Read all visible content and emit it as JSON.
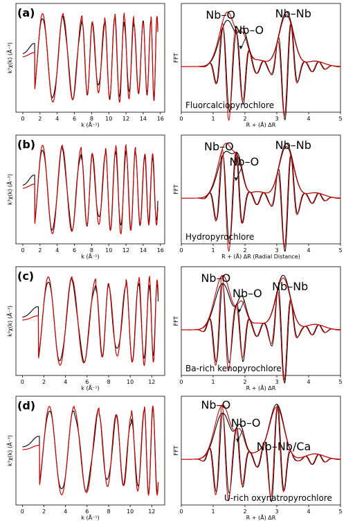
{
  "colors": {
    "experiment": "#000000",
    "fit": "#d40000"
  },
  "chart_data": [
    {
      "type": "line",
      "panel": "(a)",
      "side": "k-space",
      "xlabel": "k (Å⁻¹)",
      "ylabel": "k³χ(k) (Å⁻³)",
      "xlim": [
        -0.8,
        16.5
      ],
      "xticks": [
        0,
        2,
        4,
        6,
        8,
        10,
        12,
        14,
        16
      ],
      "curve": {
        "kmin": 0,
        "kmax": 15.7,
        "peaks": [
          2.3,
          4.7,
          6.9,
          8.1,
          9.5,
          10.7,
          11.8,
          12.9,
          14.0,
          14.9,
          15.6
        ],
        "amp": 1.0
      },
      "series": [
        {
          "role": "experiment"
        },
        {
          "role": "fit"
        }
      ]
    },
    {
      "type": "line",
      "panel": "(a)",
      "side": "R-space",
      "xlabel": "R + (Å) ΔR",
      "ylabel": "FFT",
      "xlim": [
        0,
        5
      ],
      "xticks": [
        0,
        1,
        2,
        3,
        4,
        5
      ],
      "annotations": [
        "Nb–O",
        "Nb–O",
        "Nb–Nb"
      ],
      "mineral": "Fluorcalciopyrochlore",
      "peaks_R": [
        1.45,
        1.95,
        3.3
      ],
      "series": [
        {
          "role": "experiment"
        },
        {
          "role": "fit"
        }
      ]
    },
    {
      "type": "line",
      "panel": "(b)",
      "side": "k-space",
      "xlabel": "k (Å⁻¹)",
      "ylabel": "k³χ(k) (Å⁻³)",
      "xlim": [
        -0.8,
        16.5
      ],
      "xticks": [
        0,
        2,
        4,
        6,
        8,
        10,
        12,
        14,
        16
      ],
      "curve": {
        "kmin": 0,
        "kmax": 15.7,
        "peaks": [
          2.3,
          4.6,
          6.8,
          8.1,
          9.6,
          10.8,
          12.0,
          13.1,
          14.2,
          15.1
        ],
        "amp": 1.0
      },
      "series": [
        {
          "role": "experiment"
        },
        {
          "role": "fit"
        }
      ]
    },
    {
      "type": "line",
      "panel": "(b)",
      "side": "R-space",
      "xlabel": "R + (Å) ΔR (Radial Distance)",
      "ylabel": "FFT",
      "xlim": [
        0,
        5
      ],
      "xticks": [
        0,
        1,
        2,
        3,
        4,
        5
      ],
      "annotations": [
        "Nb–O",
        "Nb–O",
        "Nb–Nb"
      ],
      "mineral": "Hydropyrochlore",
      "peaks_R": [
        1.4,
        1.8,
        3.3
      ],
      "series": [
        {
          "role": "experiment"
        },
        {
          "role": "fit"
        }
      ]
    },
    {
      "type": "line",
      "panel": "(c)",
      "side": "k-space",
      "xlabel": "k (Å⁻¹)",
      "ylabel": "k³χ(k) (Å⁻³)",
      "xlim": [
        -0.6,
        13.2
      ],
      "xticks": [
        0,
        2,
        4,
        6,
        8,
        10,
        12
      ],
      "curve": {
        "kmin": 0,
        "kmax": 12.6,
        "peaks": [
          2.4,
          4.6,
          6.8,
          8.0,
          9.6,
          10.8,
          11.8,
          12.5
        ],
        "amp": 1.0
      },
      "series": [
        {
          "role": "experiment"
        },
        {
          "role": "fit"
        }
      ]
    },
    {
      "type": "line",
      "panel": "(c)",
      "side": "R-space",
      "xlabel": "R + (Å) ΔR",
      "ylabel": "FFT",
      "xlim": [
        0,
        5
      ],
      "xticks": [
        0,
        1,
        2,
        3,
        4,
        5
      ],
      "annotations": [
        "Nb–O",
        "Nb–O",
        "Nb–Nb"
      ],
      "mineral": "Ba-rich kenopyrochlore",
      "peaks_R": [
        1.3,
        1.9,
        3.2
      ],
      "series": [
        {
          "role": "experiment"
        },
        {
          "role": "fit"
        }
      ]
    },
    {
      "type": "line",
      "panel": "(d)",
      "side": "k-space",
      "xlabel": "k (Å⁻¹)",
      "ylabel": "k³χ(k) (Å⁻³)",
      "xlim": [
        -0.6,
        13.2
      ],
      "xticks": [
        0,
        2,
        4,
        6,
        8,
        10,
        12
      ],
      "curve": {
        "kmin": 0,
        "kmax": 12.6,
        "peaks": [
          2.5,
          4.8,
          7.1,
          8.7,
          10.1,
          11.3,
          12.1
        ],
        "amp": 1.0
      },
      "series": [
        {
          "role": "experiment"
        },
        {
          "role": "fit"
        }
      ]
    },
    {
      "type": "line",
      "panel": "(d)",
      "side": "R-space",
      "xlabel": "R + (Å) ΔR",
      "ylabel": "FFT",
      "xlim": [
        0,
        5
      ],
      "xticks": [
        0,
        1,
        2,
        3,
        4,
        5
      ],
      "annotations": [
        "Nb–O",
        "Nb–O",
        "Nb–Nb/Ca"
      ],
      "mineral": "U-rich oxynatropyrochlore",
      "peaks_R": [
        1.3,
        1.85,
        3.0
      ],
      "series": [
        {
          "role": "experiment"
        },
        {
          "role": "fit"
        }
      ]
    }
  ]
}
